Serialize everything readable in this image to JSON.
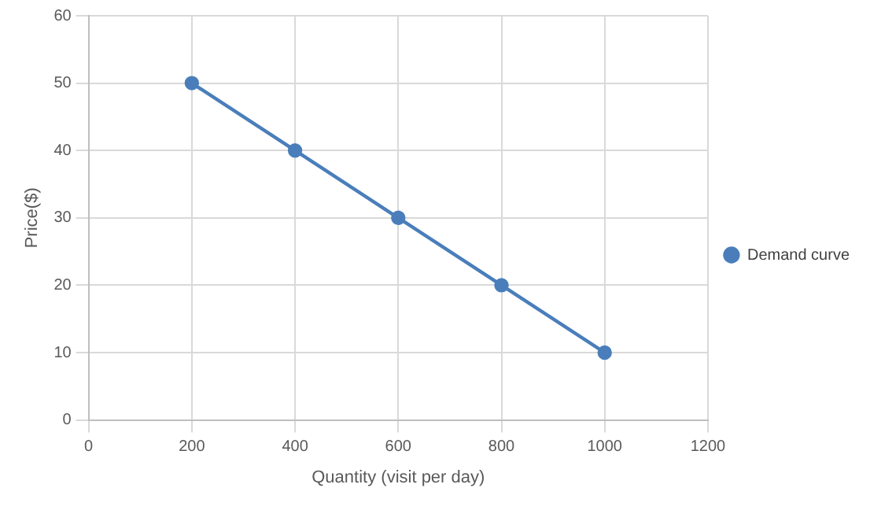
{
  "chart_data": {
    "type": "line",
    "xlabel": "Quantity (visit per day)",
    "ylabel": "Price($)",
    "x": [
      200,
      400,
      600,
      800,
      1000
    ],
    "series": [
      {
        "name": "Demand curve",
        "color": "#4a7ebb",
        "values": [
          50,
          40,
          30,
          20,
          10
        ]
      }
    ],
    "xlim": [
      0,
      1200
    ],
    "xticks": [
      0,
      200,
      400,
      600,
      800,
      1000,
      1200
    ],
    "ylim": [
      0,
      60
    ],
    "yticks": [
      0,
      10,
      20,
      30,
      40,
      50,
      60
    ],
    "grid": true,
    "legend": "right",
    "marker": "circle",
    "line_style": "solid"
  }
}
